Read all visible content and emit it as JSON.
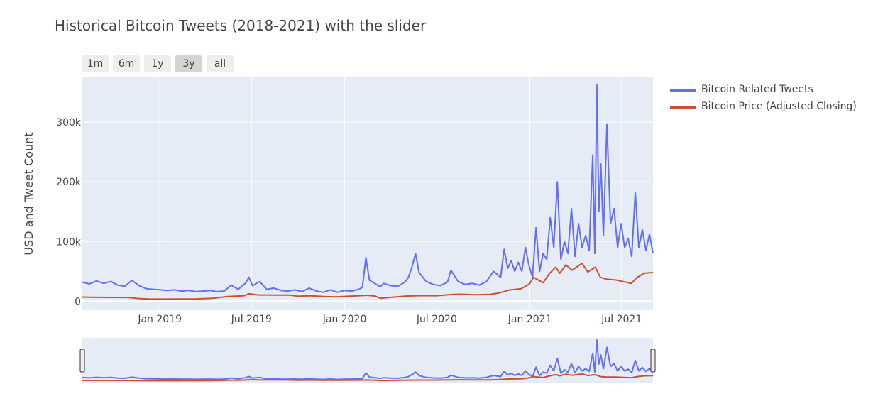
{
  "title": "Historical Bitcoin Tweets (2018-2021) with the slider",
  "range_buttons": [
    {
      "label": "1m",
      "active": false
    },
    {
      "label": "6m",
      "active": false
    },
    {
      "label": "1y",
      "active": false
    },
    {
      "label": "3y",
      "active": true
    },
    {
      "label": "all",
      "active": false
    }
  ],
  "colors": {
    "tweets": "#636efa",
    "price": "#cd4f2f",
    "plot_bg": "#e5ecf6",
    "grid": "#ffffff"
  },
  "chart_data": {
    "type": "line",
    "title": "Historical Bitcoin Tweets (2018-2021) with the slider",
    "xlabel": "",
    "ylabel": "USD and Tweet Count",
    "xlim": [
      "2018-08-01",
      "2021-09-01"
    ],
    "ylim": [
      -15000,
      375000
    ],
    "x_ticks": [
      "Jan 2019",
      "Jul 2019",
      "Jan 2020",
      "Jul 2020",
      "Jan 2021",
      "Jul 2021"
    ],
    "x_tick_dates": [
      "2019-01-01",
      "2019-07-01",
      "2020-01-01",
      "2020-07-01",
      "2021-01-01",
      "2021-07-01"
    ],
    "y_ticks": [
      "0",
      "100k",
      "200k",
      "300k"
    ],
    "y_tick_values": [
      0,
      100000,
      200000,
      300000
    ],
    "grid": true,
    "legend_position": "top-right",
    "range_slider": true,
    "series": [
      {
        "name": "Bitcoin Related Tweets",
        "points": [
          [
            "2018-08-01",
            32000
          ],
          [
            "2018-08-15",
            29000
          ],
          [
            "2018-08-29",
            34000
          ],
          [
            "2018-09-12",
            30000
          ],
          [
            "2018-09-26",
            33000
          ],
          [
            "2018-10-10",
            27000
          ],
          [
            "2018-10-24",
            25000
          ],
          [
            "2018-11-07",
            35000
          ],
          [
            "2018-11-21",
            26000
          ],
          [
            "2018-12-05",
            21000
          ],
          [
            "2018-12-19",
            20000
          ],
          [
            "2019-01-02",
            19000
          ],
          [
            "2019-01-16",
            18000
          ],
          [
            "2019-01-30",
            19000
          ],
          [
            "2019-02-13",
            17000
          ],
          [
            "2019-02-27",
            18000
          ],
          [
            "2019-03-13",
            16000
          ],
          [
            "2019-03-27",
            17000
          ],
          [
            "2019-04-10",
            18000
          ],
          [
            "2019-04-24",
            16000
          ],
          [
            "2019-05-08",
            17000
          ],
          [
            "2019-05-22",
            27000
          ],
          [
            "2019-06-05",
            20000
          ],
          [
            "2019-06-19",
            30000
          ],
          [
            "2019-06-26",
            40000
          ],
          [
            "2019-07-03",
            26000
          ],
          [
            "2019-07-17",
            33000
          ],
          [
            "2019-07-31",
            20000
          ],
          [
            "2019-08-14",
            22000
          ],
          [
            "2019-08-28",
            18000
          ],
          [
            "2019-09-11",
            17000
          ],
          [
            "2019-09-25",
            19000
          ],
          [
            "2019-10-09",
            16000
          ],
          [
            "2019-10-23",
            22000
          ],
          [
            "2019-11-06",
            17000
          ],
          [
            "2019-11-20",
            15000
          ],
          [
            "2019-12-04",
            19000
          ],
          [
            "2019-12-18",
            15000
          ],
          [
            "2020-01-01",
            18000
          ],
          [
            "2020-01-15",
            17000
          ],
          [
            "2020-01-29",
            20000
          ],
          [
            "2020-02-05",
            23000
          ],
          [
            "2020-02-12",
            73000
          ],
          [
            "2020-02-19",
            35000
          ],
          [
            "2020-03-04",
            28000
          ],
          [
            "2020-03-11",
            24000
          ],
          [
            "2020-03-18",
            30000
          ],
          [
            "2020-04-01",
            26000
          ],
          [
            "2020-04-15",
            25000
          ],
          [
            "2020-04-29",
            32000
          ],
          [
            "2020-05-06",
            40000
          ],
          [
            "2020-05-13",
            57000
          ],
          [
            "2020-05-20",
            80000
          ],
          [
            "2020-05-27",
            48000
          ],
          [
            "2020-06-10",
            33000
          ],
          [
            "2020-06-24",
            28000
          ],
          [
            "2020-07-08",
            26000
          ],
          [
            "2020-07-22",
            32000
          ],
          [
            "2020-07-29",
            52000
          ],
          [
            "2020-08-12",
            33000
          ],
          [
            "2020-08-26",
            28000
          ],
          [
            "2020-09-09",
            30000
          ],
          [
            "2020-09-23",
            27000
          ],
          [
            "2020-10-07",
            33000
          ],
          [
            "2020-10-21",
            50000
          ],
          [
            "2020-11-04",
            40000
          ],
          [
            "2020-11-11",
            87000
          ],
          [
            "2020-11-18",
            55000
          ],
          [
            "2020-11-25",
            68000
          ],
          [
            "2020-12-02",
            50000
          ],
          [
            "2020-12-09",
            65000
          ],
          [
            "2020-12-16",
            50000
          ],
          [
            "2020-12-23",
            90000
          ],
          [
            "2020-12-30",
            60000
          ],
          [
            "2021-01-06",
            40000
          ],
          [
            "2021-01-13",
            123000
          ],
          [
            "2021-01-20",
            50000
          ],
          [
            "2021-01-27",
            80000
          ],
          [
            "2021-02-03",
            70000
          ],
          [
            "2021-02-10",
            140000
          ],
          [
            "2021-02-17",
            90000
          ],
          [
            "2021-02-24",
            200000
          ],
          [
            "2021-03-03",
            70000
          ],
          [
            "2021-03-10",
            100000
          ],
          [
            "2021-03-17",
            80000
          ],
          [
            "2021-03-24",
            155000
          ],
          [
            "2021-03-31",
            75000
          ],
          [
            "2021-04-07",
            130000
          ],
          [
            "2021-04-14",
            90000
          ],
          [
            "2021-04-21",
            110000
          ],
          [
            "2021-04-28",
            85000
          ],
          [
            "2021-05-05",
            245000
          ],
          [
            "2021-05-09",
            80000
          ],
          [
            "2021-05-13",
            362000
          ],
          [
            "2021-05-17",
            150000
          ],
          [
            "2021-05-21",
            230000
          ],
          [
            "2021-05-26",
            110000
          ],
          [
            "2021-06-02",
            297000
          ],
          [
            "2021-06-09",
            130000
          ],
          [
            "2021-06-16",
            155000
          ],
          [
            "2021-06-23",
            90000
          ],
          [
            "2021-06-30",
            130000
          ],
          [
            "2021-07-07",
            90000
          ],
          [
            "2021-07-14",
            105000
          ],
          [
            "2021-07-21",
            75000
          ],
          [
            "2021-07-28",
            182000
          ],
          [
            "2021-08-04",
            90000
          ],
          [
            "2021-08-11",
            120000
          ],
          [
            "2021-08-18",
            85000
          ],
          [
            "2021-08-25",
            112000
          ],
          [
            "2021-09-01",
            80000
          ]
        ]
      },
      {
        "name": "Bitcoin Price (Adjusted Closing)",
        "points": [
          [
            "2018-08-01",
            7000
          ],
          [
            "2018-09-01",
            6500
          ],
          [
            "2018-10-01",
            6400
          ],
          [
            "2018-11-01",
            6300
          ],
          [
            "2018-11-20",
            4500
          ],
          [
            "2018-12-15",
            3500
          ],
          [
            "2019-01-15",
            3600
          ],
          [
            "2019-02-15",
            3700
          ],
          [
            "2019-03-15",
            3900
          ],
          [
            "2019-04-15",
            5000
          ],
          [
            "2019-05-15",
            7800
          ],
          [
            "2019-06-15",
            9000
          ],
          [
            "2019-06-26",
            12500
          ],
          [
            "2019-07-15",
            10500
          ],
          [
            "2019-08-15",
            10300
          ],
          [
            "2019-09-15",
            10200
          ],
          [
            "2019-10-01",
            8300
          ],
          [
            "2019-10-25",
            9300
          ],
          [
            "2019-11-20",
            8000
          ],
          [
            "2019-12-15",
            7200
          ],
          [
            "2020-01-15",
            8700
          ],
          [
            "2020-02-15",
            10000
          ],
          [
            "2020-03-01",
            8700
          ],
          [
            "2020-03-12",
            4900
          ],
          [
            "2020-04-01",
            6500
          ],
          [
            "2020-05-01",
            8700
          ],
          [
            "2020-06-01",
            9500
          ],
          [
            "2020-07-01",
            9200
          ],
          [
            "2020-07-27",
            11000
          ],
          [
            "2020-08-15",
            11800
          ],
          [
            "2020-09-15",
            10800
          ],
          [
            "2020-10-15",
            11500
          ],
          [
            "2020-11-01",
            13800
          ],
          [
            "2020-11-20",
            18500
          ],
          [
            "2020-12-15",
            21000
          ],
          [
            "2020-12-31",
            29000
          ],
          [
            "2021-01-08",
            40000
          ],
          [
            "2021-01-27",
            31000
          ],
          [
            "2021-02-08",
            46000
          ],
          [
            "2021-02-21",
            57000
          ],
          [
            "2021-03-01",
            47000
          ],
          [
            "2021-03-13",
            61000
          ],
          [
            "2021-03-25",
            52000
          ],
          [
            "2021-04-14",
            63500
          ],
          [
            "2021-04-25",
            49000
          ],
          [
            "2021-05-10",
            57000
          ],
          [
            "2021-05-20",
            40000
          ],
          [
            "2021-06-01",
            37000
          ],
          [
            "2021-06-20",
            35500
          ],
          [
            "2021-07-01",
            33500
          ],
          [
            "2021-07-20",
            29800
          ],
          [
            "2021-08-01",
            40000
          ],
          [
            "2021-08-15",
            47000
          ],
          [
            "2021-09-01",
            48000
          ]
        ]
      }
    ]
  }
}
